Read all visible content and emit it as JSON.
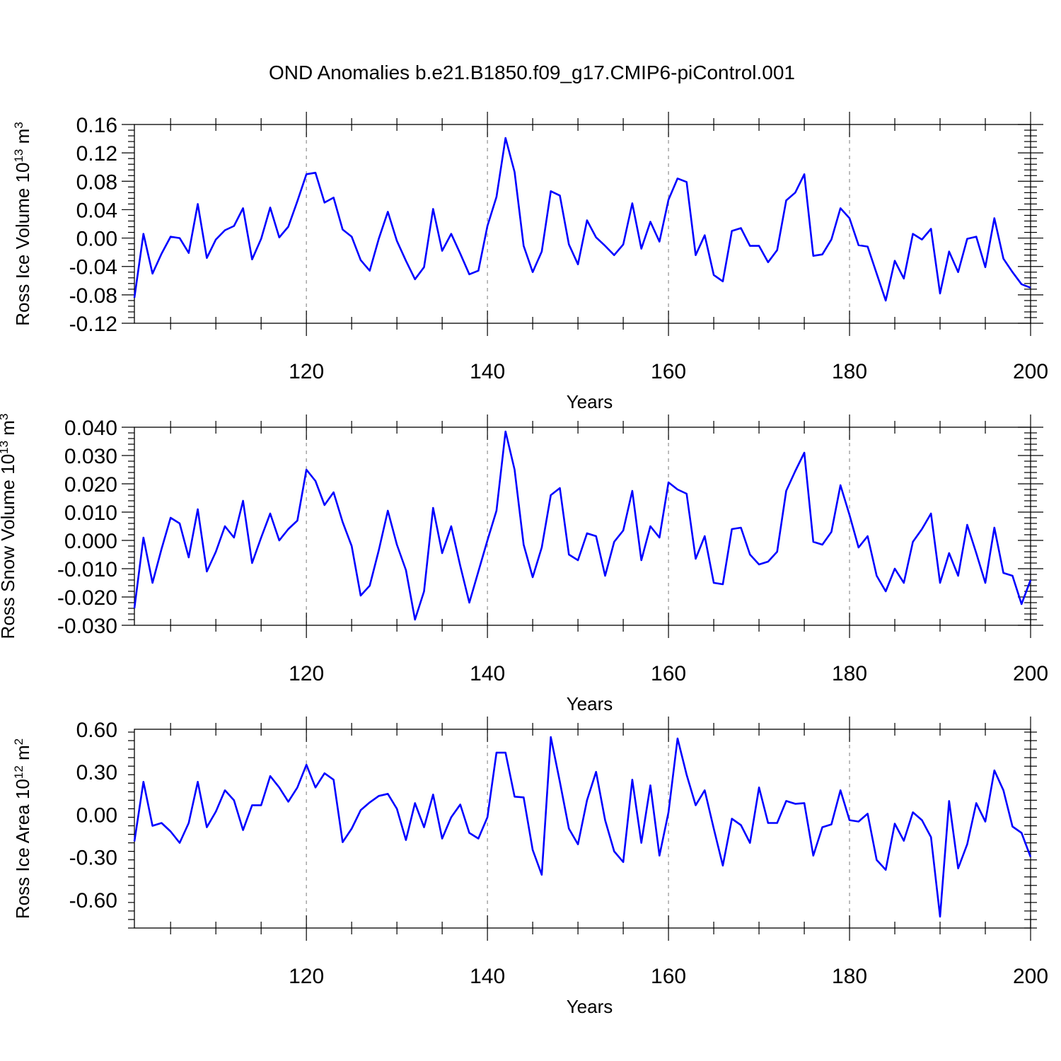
{
  "title": "OND Anomalies b.e21.B1850.f09_g17.CMIP6-piControl.001",
  "line_color": "#0000ff",
  "chart_data": [
    {
      "type": "line",
      "ylabel_main": "Ross Ice Volume 10",
      "ylabel_exp": "13",
      "ylabel_unit": " m",
      "ylabel_unit_exp": "3",
      "xlabel": "Years",
      "xlim": [
        101,
        200
      ],
      "ylim": [
        -0.12,
        0.16
      ],
      "yticks": [
        -0.12,
        -0.08,
        -0.04,
        0.0,
        0.04,
        0.08,
        0.12,
        0.16
      ],
      "ytick_labels": [
        "-0.12",
        "-0.08",
        "-0.04",
        "0.00",
        "0.04",
        "0.08",
        "0.12",
        "0.16"
      ],
      "xticks": [
        120,
        140,
        160,
        180,
        200
      ],
      "xtick_labels": [
        "120",
        "140",
        "160",
        "180",
        "200"
      ],
      "x": [
        101,
        102,
        103,
        104,
        105,
        106,
        107,
        108,
        109,
        110,
        111,
        112,
        113,
        114,
        115,
        116,
        117,
        118,
        119,
        120,
        121,
        122,
        123,
        124,
        125,
        126,
        127,
        128,
        129,
        130,
        131,
        132,
        133,
        134,
        135,
        136,
        137,
        138,
        139,
        140,
        141,
        142,
        143,
        144,
        145,
        146,
        147,
        148,
        149,
        150,
        151,
        152,
        153,
        154,
        155,
        156,
        157,
        158,
        159,
        160,
        161,
        162,
        163,
        164,
        165,
        166,
        167,
        168,
        169,
        170,
        171,
        172,
        173,
        174,
        175,
        176,
        177,
        178,
        179,
        180,
        181,
        182,
        183,
        184,
        185,
        186,
        187,
        188,
        189,
        190,
        191,
        192,
        193,
        194,
        195,
        196,
        197,
        198,
        199,
        200
      ],
      "values": [
        -0.084,
        0.006,
        -0.05,
        -0.022,
        0.002,
        0.0,
        -0.021,
        0.048,
        -0.028,
        -0.002,
        0.011,
        0.017,
        0.042,
        -0.03,
        -0.001,
        0.043,
        0.001,
        0.016,
        0.052,
        0.09,
        0.092,
        0.05,
        0.057,
        0.012,
        0.002,
        -0.031,
        -0.046,
        -0.001,
        0.037,
        -0.004,
        -0.032,
        -0.058,
        -0.041,
        0.041,
        -0.018,
        0.006,
        -0.022,
        -0.051,
        -0.046,
        0.017,
        0.058,
        0.141,
        0.093,
        -0.011,
        -0.048,
        -0.019,
        0.066,
        0.06,
        -0.009,
        -0.037,
        0.025,
        0.001,
        -0.011,
        -0.024,
        -0.009,
        0.049,
        -0.015,
        0.023,
        -0.005,
        0.054,
        0.084,
        0.079,
        -0.024,
        0.004,
        -0.052,
        -0.061,
        0.01,
        0.014,
        -0.011,
        -0.011,
        -0.034,
        -0.017,
        0.053,
        0.064,
        0.09,
        -0.025,
        -0.023,
        -0.002,
        0.042,
        0.028,
        -0.01,
        -0.012,
        -0.05,
        -0.088,
        -0.032,
        -0.057,
        0.006,
        -0.002,
        0.013,
        -0.078,
        -0.019,
        -0.048,
        -0.001,
        0.002,
        -0.041,
        0.028,
        -0.029,
        -0.048,
        -0.065,
        -0.07
      ]
    },
    {
      "type": "line",
      "ylabel_main": "Ross Snow Volume 10",
      "ylabel_exp": "13",
      "ylabel_unit": " m",
      "ylabel_unit_exp": "3",
      "xlabel": "Years",
      "xlim": [
        101,
        200
      ],
      "ylim": [
        -0.03,
        0.04
      ],
      "yticks": [
        -0.03,
        -0.02,
        -0.01,
        0.0,
        0.01,
        0.02,
        0.03,
        0.04
      ],
      "ytick_labels": [
        "-0.030",
        "-0.020",
        "-0.010",
        "0.000",
        "0.010",
        "0.020",
        "0.030",
        "0.040"
      ],
      "xticks": [
        120,
        140,
        160,
        180,
        200
      ],
      "xtick_labels": [
        "120",
        "140",
        "160",
        "180",
        "200"
      ],
      "x": [
        101,
        102,
        103,
        104,
        105,
        106,
        107,
        108,
        109,
        110,
        111,
        112,
        113,
        114,
        115,
        116,
        117,
        118,
        119,
        120,
        121,
        122,
        123,
        124,
        125,
        126,
        127,
        128,
        129,
        130,
        131,
        132,
        133,
        134,
        135,
        136,
        137,
        138,
        139,
        140,
        141,
        142,
        143,
        144,
        145,
        146,
        147,
        148,
        149,
        150,
        151,
        152,
        153,
        154,
        155,
        156,
        157,
        158,
        159,
        160,
        161,
        162,
        163,
        164,
        165,
        166,
        167,
        168,
        169,
        170,
        171,
        172,
        173,
        174,
        175,
        176,
        177,
        178,
        179,
        180,
        181,
        182,
        183,
        184,
        185,
        186,
        187,
        188,
        189,
        190,
        191,
        192,
        193,
        194,
        195,
        196,
        197,
        198,
        199,
        200
      ],
      "values": [
        -0.024,
        0.001,
        -0.015,
        -0.003,
        0.008,
        0.006,
        -0.006,
        0.011,
        -0.011,
        -0.004,
        0.005,
        0.001,
        0.014,
        -0.008,
        0.001,
        0.0095,
        0.0,
        0.004,
        0.007,
        0.025,
        0.021,
        0.0125,
        0.017,
        0.0065,
        -0.002,
        -0.0195,
        -0.016,
        -0.0035,
        0.0105,
        -0.0015,
        -0.0105,
        -0.028,
        -0.018,
        0.0115,
        -0.0045,
        0.005,
        -0.009,
        -0.022,
        -0.011,
        0.0,
        0.0105,
        0.0385,
        0.025,
        -0.0015,
        -0.013,
        -0.0025,
        0.016,
        0.0185,
        -0.005,
        -0.007,
        0.0025,
        0.0015,
        -0.0125,
        -0.0005,
        0.0035,
        0.0175,
        -0.007,
        0.005,
        0.001,
        0.0205,
        0.018,
        0.0165,
        -0.0065,
        0.0015,
        -0.015,
        -0.0155,
        0.004,
        0.0045,
        -0.005,
        -0.0085,
        -0.0075,
        -0.004,
        0.0175,
        0.0245,
        0.031,
        -0.0005,
        -0.0015,
        0.003,
        0.0195,
        0.009,
        -0.0025,
        0.0015,
        -0.0125,
        -0.018,
        -0.01,
        -0.015,
        -0.0005,
        0.004,
        0.0095,
        -0.015,
        -0.0045,
        -0.0125,
        0.0055,
        -0.0045,
        -0.015,
        0.0045,
        -0.0115,
        -0.0125,
        -0.0225,
        -0.014
      ]
    },
    {
      "type": "line",
      "ylabel_main": "Ross Ice Area 10",
      "ylabel_exp": "12",
      "ylabel_unit": " m",
      "ylabel_unit_exp": "2",
      "xlabel": "Years",
      "xlim": [
        101,
        200
      ],
      "ylim": [
        -0.8,
        0.6
      ],
      "yticks": [
        -0.6,
        -0.3,
        0.0,
        0.3,
        0.6
      ],
      "ytick_labels": [
        "-0.60",
        "-0.30",
        "0.00",
        "0.30",
        "0.60"
      ],
      "xticks": [
        120,
        140,
        160,
        180,
        200
      ],
      "xtick_labels": [
        "120",
        "140",
        "160",
        "180",
        "200"
      ],
      "x": [
        101,
        102,
        103,
        104,
        105,
        106,
        107,
        108,
        109,
        110,
        111,
        112,
        113,
        114,
        115,
        116,
        117,
        118,
        119,
        120,
        121,
        122,
        123,
        124,
        125,
        126,
        127,
        128,
        129,
        130,
        131,
        132,
        133,
        134,
        135,
        136,
        137,
        138,
        139,
        140,
        141,
        142,
        143,
        144,
        145,
        146,
        147,
        148,
        149,
        150,
        151,
        152,
        153,
        154,
        155,
        156,
        157,
        158,
        159,
        160,
        161,
        162,
        163,
        164,
        165,
        166,
        167,
        168,
        169,
        170,
        171,
        172,
        173,
        174,
        175,
        176,
        177,
        178,
        179,
        180,
        181,
        182,
        183,
        184,
        185,
        186,
        187,
        188,
        189,
        190,
        191,
        192,
        193,
        194,
        195,
        196,
        197,
        198,
        199,
        200
      ],
      "values": [
        -0.19,
        0.23,
        -0.08,
        -0.06,
        -0.12,
        -0.2,
        -0.06,
        0.23,
        -0.09,
        0.02,
        0.17,
        0.1,
        -0.11,
        0.065,
        0.065,
        0.27,
        0.19,
        0.09,
        0.19,
        0.35,
        0.19,
        0.29,
        0.245,
        -0.195,
        -0.1,
        0.03,
        0.085,
        0.13,
        0.145,
        0.04,
        -0.18,
        0.08,
        -0.09,
        0.14,
        -0.17,
        -0.02,
        0.07,
        -0.13,
        -0.17,
        -0.02,
        0.435,
        0.435,
        0.125,
        0.12,
        -0.25,
        -0.425,
        0.545,
        0.23,
        -0.1,
        -0.21,
        0.1,
        0.3,
        -0.04,
        -0.26,
        -0.335,
        0.245,
        -0.2,
        0.205,
        -0.29,
        0.015,
        0.535,
        0.28,
        0.065,
        0.17,
        -0.1,
        -0.36,
        -0.03,
        -0.075,
        -0.2,
        0.19,
        -0.06,
        -0.06,
        0.095,
        0.075,
        0.08,
        -0.29,
        -0.09,
        -0.07,
        0.17,
        -0.04,
        -0.05,
        0.005,
        -0.32,
        -0.39,
        -0.065,
        -0.185,
        0.015,
        -0.04,
        -0.16,
        -0.72,
        0.095,
        -0.38,
        -0.21,
        0.08,
        -0.05,
        0.31,
        0.17,
        -0.085,
        -0.13,
        -0.3
      ]
    }
  ]
}
